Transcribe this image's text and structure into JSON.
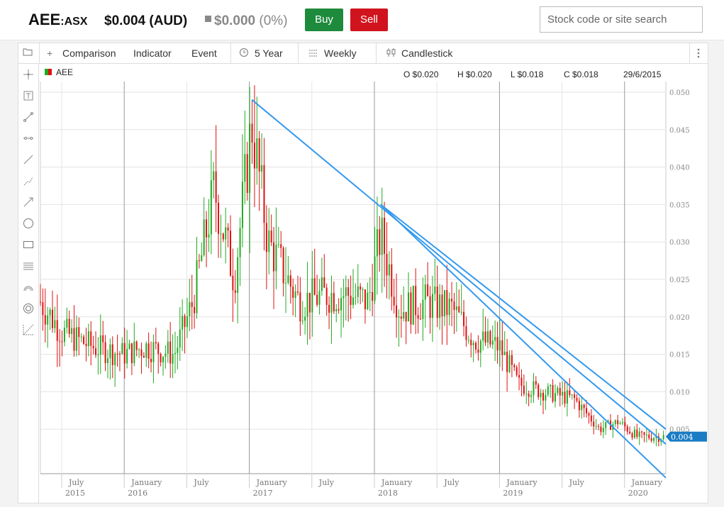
{
  "header": {
    "ticker": "AEE",
    "exchange": ":ASX",
    "price": "$0.004 (AUD)",
    "change_value": "$0.000",
    "change_percent": "(0%)",
    "buy_label": "Buy",
    "sell_label": "Sell",
    "search_placeholder": "Stock code or site search"
  },
  "toolbar": {
    "comparison_label": "Comparison",
    "indicator_label": "Indicator",
    "event_label": "Event",
    "range_label": "5 Year",
    "interval_label": "Weekly",
    "chart_type_label": "Candlestick"
  },
  "sidebar": {
    "tools": [
      "crosshair-icon",
      "text-icon",
      "line-segment-icon",
      "horizontal-line-icon",
      "trend-line-icon",
      "polyline-icon",
      "arrow-line-icon",
      "circle-icon",
      "rectangle-icon",
      "parallel-lines-icon",
      "arc-icon",
      "concentric-circle-icon",
      "fibonacci-icon"
    ]
  },
  "legend": {
    "symbol": "AEE",
    "open": "O $0.020",
    "high": "H $0.020",
    "low": "L $0.018",
    "close": "C $0.018",
    "date": "29/6/2015"
  },
  "colors": {
    "up": "#22aa22",
    "down": "#dd1111",
    "trendline": "#3399ee",
    "last_price_tag": "#1a7cc4",
    "buy": "#1e8a3c",
    "sell": "#d0131c"
  },
  "chart_data": {
    "type": "candlestick",
    "interval": "weekly",
    "ylim": [
      0.0,
      0.05
    ],
    "y_ticks": [
      "0.050",
      "0.045",
      "0.040",
      "0.035",
      "0.030",
      "0.025",
      "0.020",
      "0.015",
      "0.010",
      "0.005"
    ],
    "x_ticks": [
      {
        "month": "July",
        "year": "2015",
        "t": 2015.5
      },
      {
        "month": "January",
        "year": "2016",
        "t": 2016.0
      },
      {
        "month": "July",
        "year": "",
        "t": 2016.5
      },
      {
        "month": "January",
        "year": "2017",
        "t": 2017.0
      },
      {
        "month": "July",
        "year": "",
        "t": 2017.5
      },
      {
        "month": "January",
        "year": "2018",
        "t": 2018.0
      },
      {
        "month": "July",
        "year": "",
        "t": 2018.5
      },
      {
        "month": "January",
        "year": "2019",
        "t": 2019.0
      },
      {
        "month": "July",
        "year": "",
        "t": 2019.5
      },
      {
        "month": "January",
        "year": "2020",
        "t": 2020.0
      }
    ],
    "x_range": [
      2015.33,
      2020.33
    ],
    "last_price": "0.004",
    "anchors": [
      [
        2015.33,
        0.022
      ],
      [
        2015.5,
        0.018
      ],
      [
        2015.75,
        0.016
      ],
      [
        2016.0,
        0.015
      ],
      [
        2016.17,
        0.016
      ],
      [
        2016.4,
        0.015
      ],
      [
        2016.55,
        0.022
      ],
      [
        2016.72,
        0.037
      ],
      [
        2016.88,
        0.025
      ],
      [
        2017.02,
        0.046
      ],
      [
        2017.15,
        0.03
      ],
      [
        2017.4,
        0.022
      ],
      [
        2017.62,
        0.023
      ],
      [
        2017.8,
        0.023
      ],
      [
        2017.95,
        0.022
      ],
      [
        2018.05,
        0.031
      ],
      [
        2018.2,
        0.021
      ],
      [
        2018.4,
        0.022
      ],
      [
        2018.62,
        0.021
      ],
      [
        2018.8,
        0.017
      ],
      [
        2019.0,
        0.016
      ],
      [
        2019.15,
        0.011
      ],
      [
        2019.35,
        0.01
      ],
      [
        2019.6,
        0.009
      ],
      [
        2019.8,
        0.005
      ],
      [
        2019.95,
        0.006
      ],
      [
        2020.1,
        0.004
      ],
      [
        2020.33,
        0.004
      ]
    ],
    "trendlines": [
      {
        "from": [
          2017.02,
          0.049
        ],
        "to": [
          2020.33,
          0.003
        ]
      },
      {
        "from": [
          2018.05,
          0.035
        ],
        "to": [
          2020.33,
          -0.0015
        ]
      },
      {
        "from": [
          2018.05,
          0.035
        ],
        "to": [
          2020.33,
          0.005
        ]
      }
    ]
  }
}
